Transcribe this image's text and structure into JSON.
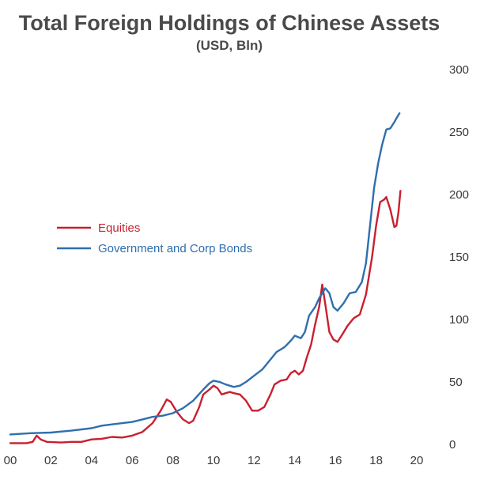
{
  "chart_data": {
    "type": "line",
    "title": "Total Foreign Holdings of Chinese Assets",
    "subtitle": "(USD, Bln)",
    "xlabel": "",
    "ylabel": "",
    "xlim": [
      2000,
      2020
    ],
    "ylim": [
      0,
      300
    ],
    "x_ticks": [
      {
        "value": 2000,
        "label": "00"
      },
      {
        "value": 2002,
        "label": "02"
      },
      {
        "value": 2004,
        "label": "04"
      },
      {
        "value": 2006,
        "label": "06"
      },
      {
        "value": 2008,
        "label": "08"
      },
      {
        "value": 2010,
        "label": "10"
      },
      {
        "value": 2012,
        "label": "12"
      },
      {
        "value": 2014,
        "label": "14"
      },
      {
        "value": 2016,
        "label": "16"
      },
      {
        "value": 2018,
        "label": "18"
      },
      {
        "value": 2020,
        "label": "20"
      }
    ],
    "y_ticks": [
      0,
      50,
      100,
      150,
      200,
      250,
      300
    ],
    "y_axis_side": "right",
    "grid": false,
    "legend_position": "left-middle",
    "series": [
      {
        "name": "Equities",
        "color": "#c8202f",
        "points": [
          [
            2000.0,
            1
          ],
          [
            2000.8,
            1
          ],
          [
            2001.1,
            2
          ],
          [
            2001.3,
            7
          ],
          [
            2001.5,
            4
          ],
          [
            2001.8,
            2
          ],
          [
            2002.5,
            1.5
          ],
          [
            2003.0,
            2
          ],
          [
            2003.5,
            2
          ],
          [
            2004.0,
            4
          ],
          [
            2004.5,
            4.5
          ],
          [
            2005.0,
            6
          ],
          [
            2005.5,
            5.5
          ],
          [
            2006.0,
            7
          ],
          [
            2006.5,
            10
          ],
          [
            2007.0,
            17
          ],
          [
            2007.4,
            27
          ],
          [
            2007.7,
            36
          ],
          [
            2007.9,
            34
          ],
          [
            2008.2,
            26
          ],
          [
            2008.5,
            20
          ],
          [
            2008.8,
            17
          ],
          [
            2009.0,
            19
          ],
          [
            2009.3,
            30
          ],
          [
            2009.5,
            40
          ],
          [
            2009.8,
            44
          ],
          [
            2010.0,
            47
          ],
          [
            2010.2,
            45
          ],
          [
            2010.4,
            40
          ],
          [
            2010.6,
            41
          ],
          [
            2010.8,
            42
          ],
          [
            2011.0,
            41
          ],
          [
            2011.3,
            40
          ],
          [
            2011.6,
            35
          ],
          [
            2011.9,
            27
          ],
          [
            2012.2,
            27
          ],
          [
            2012.5,
            30
          ],
          [
            2012.8,
            40
          ],
          [
            2013.0,
            48
          ],
          [
            2013.3,
            51
          ],
          [
            2013.6,
            52
          ],
          [
            2013.8,
            57
          ],
          [
            2014.0,
            59
          ],
          [
            2014.2,
            56
          ],
          [
            2014.4,
            59
          ],
          [
            2014.6,
            70
          ],
          [
            2014.8,
            80
          ],
          [
            2015.0,
            96
          ],
          [
            2015.2,
            110
          ],
          [
            2015.35,
            128
          ],
          [
            2015.5,
            112
          ],
          [
            2015.7,
            90
          ],
          [
            2015.9,
            84
          ],
          [
            2016.1,
            82
          ],
          [
            2016.3,
            87
          ],
          [
            2016.6,
            95
          ],
          [
            2016.9,
            101
          ],
          [
            2017.2,
            104
          ],
          [
            2017.5,
            120
          ],
          [
            2017.8,
            150
          ],
          [
            2018.0,
            175
          ],
          [
            2018.2,
            194
          ],
          [
            2018.4,
            196
          ],
          [
            2018.5,
            198
          ],
          [
            2018.7,
            188
          ],
          [
            2018.9,
            174
          ],
          [
            2019.0,
            175
          ],
          [
            2019.1,
            186
          ],
          [
            2019.2,
            203
          ]
        ]
      },
      {
        "name": "Government and Corp Bonds",
        "color": "#2f6fad",
        "points": [
          [
            2000.0,
            8
          ],
          [
            2001.0,
            9
          ],
          [
            2002.0,
            9.5
          ],
          [
            2003.0,
            11
          ],
          [
            2004.0,
            13
          ],
          [
            2004.5,
            15
          ],
          [
            2005.0,
            16
          ],
          [
            2006.0,
            18
          ],
          [
            2006.5,
            20
          ],
          [
            2007.0,
            22
          ],
          [
            2007.5,
            23
          ],
          [
            2008.0,
            25
          ],
          [
            2008.5,
            29
          ],
          [
            2009.0,
            35
          ],
          [
            2009.5,
            44
          ],
          [
            2009.8,
            49
          ],
          [
            2010.0,
            51
          ],
          [
            2010.3,
            50
          ],
          [
            2010.6,
            48
          ],
          [
            2011.0,
            46
          ],
          [
            2011.3,
            47
          ],
          [
            2011.6,
            50
          ],
          [
            2012.0,
            55
          ],
          [
            2012.4,
            60
          ],
          [
            2012.8,
            68
          ],
          [
            2013.1,
            74
          ],
          [
            2013.5,
            78
          ],
          [
            2013.8,
            83
          ],
          [
            2014.0,
            87
          ],
          [
            2014.3,
            85
          ],
          [
            2014.5,
            90
          ],
          [
            2014.7,
            103
          ],
          [
            2015.0,
            110
          ],
          [
            2015.2,
            117
          ],
          [
            2015.5,
            125
          ],
          [
            2015.7,
            121
          ],
          [
            2015.9,
            110
          ],
          [
            2016.1,
            107
          ],
          [
            2016.4,
            113
          ],
          [
            2016.7,
            121
          ],
          [
            2017.0,
            122
          ],
          [
            2017.3,
            130
          ],
          [
            2017.5,
            145
          ],
          [
            2017.7,
            175
          ],
          [
            2017.9,
            205
          ],
          [
            2018.1,
            225
          ],
          [
            2018.3,
            240
          ],
          [
            2018.5,
            252
          ],
          [
            2018.7,
            253
          ],
          [
            2018.9,
            258
          ],
          [
            2019.0,
            261
          ],
          [
            2019.15,
            265
          ]
        ]
      }
    ]
  }
}
